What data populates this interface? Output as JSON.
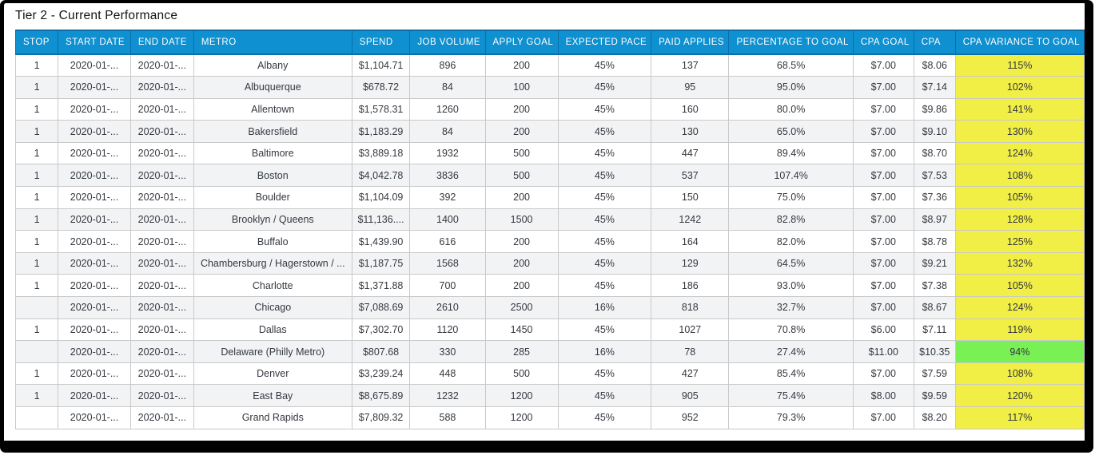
{
  "title": "Tier 2 - Current Performance",
  "colors": {
    "header_bg": "#0f90d0",
    "header_border": "#0b6fa6",
    "grid_border": "#c9c9c9",
    "alt_row_bg": "#f2f3f5",
    "body_text": "#35383f",
    "variance_yellow": "#f1ee45",
    "variance_green": "#79f054"
  },
  "table": {
    "columns": [
      {
        "key": "stop",
        "label": "STOP"
      },
      {
        "key": "start_date",
        "label": "START DATE"
      },
      {
        "key": "end_date",
        "label": "END DATE"
      },
      {
        "key": "metro",
        "label": "METRO"
      },
      {
        "key": "spend",
        "label": "SPEND"
      },
      {
        "key": "job_volume",
        "label": "JOB VOLUME"
      },
      {
        "key": "apply_goal",
        "label": "APPLY GOAL"
      },
      {
        "key": "expected_pace",
        "label": "EXPECTED PACE"
      },
      {
        "key": "paid_applies",
        "label": "PAID APPLIES"
      },
      {
        "key": "percentage_to_goal",
        "label": "PERCENTAGE TO GOAL"
      },
      {
        "key": "cpa_goal",
        "label": "CPA GOAL"
      },
      {
        "key": "cpa",
        "label": "CPA"
      },
      {
        "key": "cpa_variance_to_goal",
        "label": "CPA VARIANCE TO GOAL"
      }
    ],
    "rows": [
      {
        "stop": "1",
        "start_date": "2020-01-...",
        "end_date": "2020-01-...",
        "metro": "Albany",
        "spend": "$1,104.71",
        "job_volume": "896",
        "apply_goal": "200",
        "expected_pace": "45%",
        "paid_applies": "137",
        "percentage_to_goal": "68.5%",
        "cpa_goal": "$7.00",
        "cpa": "$8.06",
        "cpa_variance_to_goal": "115%",
        "variance_color": "yellow"
      },
      {
        "stop": "1",
        "start_date": "2020-01-...",
        "end_date": "2020-01-...",
        "metro": "Albuquerque",
        "spend": "$678.72",
        "job_volume": "84",
        "apply_goal": "100",
        "expected_pace": "45%",
        "paid_applies": "95",
        "percentage_to_goal": "95.0%",
        "cpa_goal": "$7.00",
        "cpa": "$7.14",
        "cpa_variance_to_goal": "102%",
        "variance_color": "yellow"
      },
      {
        "stop": "1",
        "start_date": "2020-01-...",
        "end_date": "2020-01-...",
        "metro": "Allentown",
        "spend": "$1,578.31",
        "job_volume": "1260",
        "apply_goal": "200",
        "expected_pace": "45%",
        "paid_applies": "160",
        "percentage_to_goal": "80.0%",
        "cpa_goal": "$7.00",
        "cpa": "$9.86",
        "cpa_variance_to_goal": "141%",
        "variance_color": "yellow"
      },
      {
        "stop": "1",
        "start_date": "2020-01-...",
        "end_date": "2020-01-...",
        "metro": "Bakersfield",
        "spend": "$1,183.29",
        "job_volume": "84",
        "apply_goal": "200",
        "expected_pace": "45%",
        "paid_applies": "130",
        "percentage_to_goal": "65.0%",
        "cpa_goal": "$7.00",
        "cpa": "$9.10",
        "cpa_variance_to_goal": "130%",
        "variance_color": "yellow"
      },
      {
        "stop": "1",
        "start_date": "2020-01-...",
        "end_date": "2020-01-...",
        "metro": "Baltimore",
        "spend": "$3,889.18",
        "job_volume": "1932",
        "apply_goal": "500",
        "expected_pace": "45%",
        "paid_applies": "447",
        "percentage_to_goal": "89.4%",
        "cpa_goal": "$7.00",
        "cpa": "$8.70",
        "cpa_variance_to_goal": "124%",
        "variance_color": "yellow"
      },
      {
        "stop": "1",
        "start_date": "2020-01-...",
        "end_date": "2020-01-...",
        "metro": "Boston",
        "spend": "$4,042.78",
        "job_volume": "3836",
        "apply_goal": "500",
        "expected_pace": "45%",
        "paid_applies": "537",
        "percentage_to_goal": "107.4%",
        "cpa_goal": "$7.00",
        "cpa": "$7.53",
        "cpa_variance_to_goal": "108%",
        "variance_color": "yellow"
      },
      {
        "stop": "1",
        "start_date": "2020-01-...",
        "end_date": "2020-01-...",
        "metro": "Boulder",
        "spend": "$1,104.09",
        "job_volume": "392",
        "apply_goal": "200",
        "expected_pace": "45%",
        "paid_applies": "150",
        "percentage_to_goal": "75.0%",
        "cpa_goal": "$7.00",
        "cpa": "$7.36",
        "cpa_variance_to_goal": "105%",
        "variance_color": "yellow"
      },
      {
        "stop": "1",
        "start_date": "2020-01-...",
        "end_date": "2020-01-...",
        "metro": "Brooklyn / Queens",
        "spend": "$11,136....",
        "job_volume": "1400",
        "apply_goal": "1500",
        "expected_pace": "45%",
        "paid_applies": "1242",
        "percentage_to_goal": "82.8%",
        "cpa_goal": "$7.00",
        "cpa": "$8.97",
        "cpa_variance_to_goal": "128%",
        "variance_color": "yellow"
      },
      {
        "stop": "1",
        "start_date": "2020-01-...",
        "end_date": "2020-01-...",
        "metro": "Buffalo",
        "spend": "$1,439.90",
        "job_volume": "616",
        "apply_goal": "200",
        "expected_pace": "45%",
        "paid_applies": "164",
        "percentage_to_goal": "82.0%",
        "cpa_goal": "$7.00",
        "cpa": "$8.78",
        "cpa_variance_to_goal": "125%",
        "variance_color": "yellow"
      },
      {
        "stop": "1",
        "start_date": "2020-01-...",
        "end_date": "2020-01-...",
        "metro": "Chambersburg / Hagerstown / ...",
        "spend": "$1,187.75",
        "job_volume": "1568",
        "apply_goal": "200",
        "expected_pace": "45%",
        "paid_applies": "129",
        "percentage_to_goal": "64.5%",
        "cpa_goal": "$7.00",
        "cpa": "$9.21",
        "cpa_variance_to_goal": "132%",
        "variance_color": "yellow"
      },
      {
        "stop": "1",
        "start_date": "2020-01-...",
        "end_date": "2020-01-...",
        "metro": "Charlotte",
        "spend": "$1,371.88",
        "job_volume": "700",
        "apply_goal": "200",
        "expected_pace": "45%",
        "paid_applies": "186",
        "percentage_to_goal": "93.0%",
        "cpa_goal": "$7.00",
        "cpa": "$7.38",
        "cpa_variance_to_goal": "105%",
        "variance_color": "yellow"
      },
      {
        "stop": "",
        "start_date": "2020-01-...",
        "end_date": "2020-01-...",
        "metro": "Chicago",
        "spend": "$7,088.69",
        "job_volume": "2610",
        "apply_goal": "2500",
        "expected_pace": "16%",
        "paid_applies": "818",
        "percentage_to_goal": "32.7%",
        "cpa_goal": "$7.00",
        "cpa": "$8.67",
        "cpa_variance_to_goal": "124%",
        "variance_color": "yellow"
      },
      {
        "stop": "1",
        "start_date": "2020-01-...",
        "end_date": "2020-01-...",
        "metro": "Dallas",
        "spend": "$7,302.70",
        "job_volume": "1120",
        "apply_goal": "1450",
        "expected_pace": "45%",
        "paid_applies": "1027",
        "percentage_to_goal": "70.8%",
        "cpa_goal": "$6.00",
        "cpa": "$7.11",
        "cpa_variance_to_goal": "119%",
        "variance_color": "yellow"
      },
      {
        "stop": "",
        "start_date": "2020-01-...",
        "end_date": "2020-01-...",
        "metro": "Delaware (Philly Metro)",
        "spend": "$807.68",
        "job_volume": "330",
        "apply_goal": "285",
        "expected_pace": "16%",
        "paid_applies": "78",
        "percentage_to_goal": "27.4%",
        "cpa_goal": "$11.00",
        "cpa": "$10.35",
        "cpa_variance_to_goal": "94%",
        "variance_color": "green"
      },
      {
        "stop": "1",
        "start_date": "2020-01-...",
        "end_date": "2020-01-...",
        "metro": "Denver",
        "spend": "$3,239.24",
        "job_volume": "448",
        "apply_goal": "500",
        "expected_pace": "45%",
        "paid_applies": "427",
        "percentage_to_goal": "85.4%",
        "cpa_goal": "$7.00",
        "cpa": "$7.59",
        "cpa_variance_to_goal": "108%",
        "variance_color": "yellow"
      },
      {
        "stop": "1",
        "start_date": "2020-01-...",
        "end_date": "2020-01-...",
        "metro": "East Bay",
        "spend": "$8,675.89",
        "job_volume": "1232",
        "apply_goal": "1200",
        "expected_pace": "45%",
        "paid_applies": "905",
        "percentage_to_goal": "75.4%",
        "cpa_goal": "$8.00",
        "cpa": "$9.59",
        "cpa_variance_to_goal": "120%",
        "variance_color": "yellow"
      },
      {
        "stop": "",
        "start_date": "2020-01-...",
        "end_date": "2020-01-...",
        "metro": "Grand Rapids",
        "spend": "$7,809.32",
        "job_volume": "588",
        "apply_goal": "1200",
        "expected_pace": "45%",
        "paid_applies": "952",
        "percentage_to_goal": "79.3%",
        "cpa_goal": "$7.00",
        "cpa": "$8.20",
        "cpa_variance_to_goal": "117%",
        "variance_color": "yellow"
      }
    ]
  }
}
